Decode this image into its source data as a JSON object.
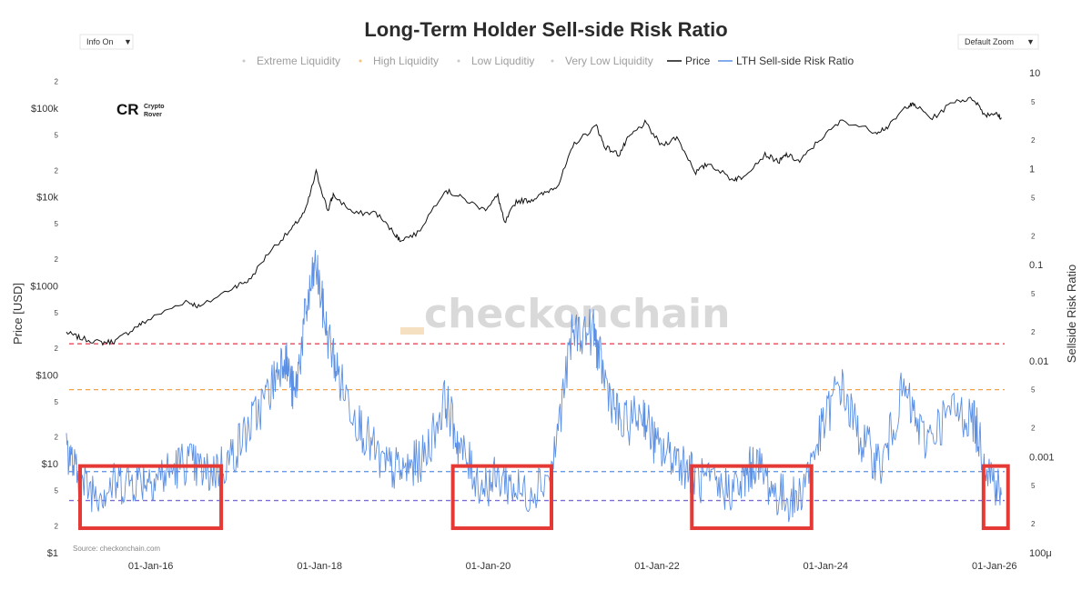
{
  "chart_data": {
    "type": "line",
    "title": "Long-Term Holder Sell-side Risk Ratio",
    "controls": {
      "info_label": "Info On",
      "zoom_label": "Default Zoom"
    },
    "legend": [
      {
        "label": "Extreme Liquidity",
        "color": "#c9c9c9",
        "marker": "dot"
      },
      {
        "label": "High Liquidity",
        "color": "#f5c27a",
        "marker": "dot"
      },
      {
        "label": "Low Liquditiy",
        "color": "#c9c9c9",
        "marker": "dot"
      },
      {
        "label": "Very Low Liquidity",
        "color": "#c9c9c9",
        "marker": "dot"
      },
      {
        "label": "Price",
        "color": "#111111",
        "marker": "line"
      },
      {
        "label": "LTH Sell-side Risk Ratio",
        "color": "#5b8fe3",
        "marker": "line"
      }
    ],
    "y_left": {
      "label": "Price [USD]",
      "scale": "log",
      "range": [
        1,
        250000
      ],
      "major_ticks": [
        {
          "value": 1,
          "label": "$1"
        },
        {
          "value": 10,
          "label": "$10"
        },
        {
          "value": 100,
          "label": "$100"
        },
        {
          "value": 1000,
          "label": "$1000"
        },
        {
          "value": 10000,
          "label": "$10k"
        },
        {
          "value": 100000,
          "label": "$100k"
        }
      ],
      "minor_ticks": [
        {
          "value": 2,
          "label": "2"
        },
        {
          "value": 5,
          "label": "5"
        },
        {
          "value": 20,
          "label": "2"
        },
        {
          "value": 50,
          "label": "5"
        },
        {
          "value": 200,
          "label": "2"
        },
        {
          "value": 500,
          "label": "5"
        },
        {
          "value": 2000,
          "label": "2"
        },
        {
          "value": 5000,
          "label": "5"
        },
        {
          "value": 20000,
          "label": "2"
        },
        {
          "value": 50000,
          "label": "5"
        },
        {
          "value": 200000,
          "label": "2"
        }
      ]
    },
    "y_right": {
      "label": "Sellside Risk Ratio",
      "scale": "log",
      "range": [
        0.0001,
        10
      ],
      "major_ticks": [
        {
          "value": 0.0001,
          "label": "100μ"
        },
        {
          "value": 0.001,
          "label": "0.001"
        },
        {
          "value": 0.01,
          "label": "0.01"
        },
        {
          "value": 0.1,
          "label": "0.1"
        },
        {
          "value": 1,
          "label": "1"
        },
        {
          "value": 10,
          "label": "10"
        }
      ],
      "minor_ticks": [
        {
          "value": 0.0002,
          "label": "2"
        },
        {
          "value": 0.0005,
          "label": "5"
        },
        {
          "value": 0.002,
          "label": "2"
        },
        {
          "value": 0.005,
          "label": "5"
        },
        {
          "value": 0.02,
          "label": "2"
        },
        {
          "value": 0.05,
          "label": "5"
        },
        {
          "value": 0.2,
          "label": "2"
        },
        {
          "value": 0.5,
          "label": "5"
        },
        {
          "value": 2,
          "label": "2"
        },
        {
          "value": 5,
          "label": "5"
        }
      ]
    },
    "x_axis": {
      "type": "date",
      "range": [
        "2014-12-20",
        "2026-03-10"
      ],
      "ticks": [
        {
          "value": "2016-01-01",
          "label": "01-Jan-16"
        },
        {
          "value": "2018-01-01",
          "label": "01-Jan-18"
        },
        {
          "value": "2020-01-01",
          "label": "01-Jan-20"
        },
        {
          "value": "2022-01-01",
          "label": "01-Jan-22"
        },
        {
          "value": "2024-01-01",
          "label": "01-Jan-24"
        },
        {
          "value": "2026-01-01",
          "label": "01-Jan-26"
        }
      ]
    },
    "threshold_lines": [
      {
        "value": 0.015,
        "color": "#e8475b"
      },
      {
        "value": 0.005,
        "color": "#f3a04a"
      },
      {
        "value": 0.0007,
        "color": "#5b8fe3"
      },
      {
        "value": 0.00035,
        "color": "#7b6fd6"
      }
    ],
    "highlight_boxes": [
      {
        "x_start": "2015-03-01",
        "x_end": "2016-11-01",
        "y_low": 0.00018,
        "y_high": 0.0008,
        "color": "#e53935"
      },
      {
        "x_start": "2019-08-01",
        "x_end": "2020-10-01",
        "y_low": 0.00018,
        "y_high": 0.0008,
        "color": "#e53935"
      },
      {
        "x_start": "2022-06-01",
        "x_end": "2023-11-01",
        "y_low": 0.00018,
        "y_high": 0.0008,
        "color": "#e53935"
      },
      {
        "x_start": "2025-11-15",
        "x_end": "2026-03-01",
        "y_low": 0.00018,
        "y_high": 0.0008,
        "color": "#e53935"
      }
    ],
    "series": [
      {
        "name": "Price",
        "axis": "left",
        "color": "#111111",
        "points": [
          [
            "2015-01-01",
            300
          ],
          [
            "2015-03-01",
            260
          ],
          [
            "2015-06-01",
            230
          ],
          [
            "2015-08-01",
            240
          ],
          [
            "2015-11-01",
            350
          ],
          [
            "2016-01-01",
            430
          ],
          [
            "2016-06-01",
            680
          ],
          [
            "2016-08-01",
            580
          ],
          [
            "2017-01-01",
            1000
          ],
          [
            "2017-03-01",
            1150
          ],
          [
            "2017-06-01",
            2500
          ],
          [
            "2017-09-01",
            4300
          ],
          [
            "2017-11-01",
            7000
          ],
          [
            "2017-12-17",
            19000
          ],
          [
            "2018-02-06",
            7000
          ],
          [
            "2018-03-01",
            10500
          ],
          [
            "2018-06-01",
            6500
          ],
          [
            "2018-09-01",
            6700
          ],
          [
            "2018-11-25",
            3800
          ],
          [
            "2018-12-15",
            3300
          ],
          [
            "2019-03-01",
            3900
          ],
          [
            "2019-06-26",
            12000
          ],
          [
            "2019-09-01",
            10000
          ],
          [
            "2019-12-15",
            7200
          ],
          [
            "2020-02-12",
            10300
          ],
          [
            "2020-03-12",
            5000
          ],
          [
            "2020-05-01",
            9000
          ],
          [
            "2020-07-01",
            9200
          ],
          [
            "2020-09-01",
            11000
          ],
          [
            "2020-11-01",
            14000
          ],
          [
            "2021-01-08",
            40000
          ],
          [
            "2021-04-14",
            63000
          ],
          [
            "2021-05-19",
            37000
          ],
          [
            "2021-07-20",
            30000
          ],
          [
            "2021-09-01",
            47000
          ],
          [
            "2021-11-10",
            68000
          ],
          [
            "2022-01-20",
            38000
          ],
          [
            "2022-03-28",
            47000
          ],
          [
            "2022-06-18",
            19000
          ],
          [
            "2022-08-14",
            24000
          ],
          [
            "2022-11-21",
            15800
          ],
          [
            "2023-01-01",
            16600
          ],
          [
            "2023-04-14",
            30000
          ],
          [
            "2023-06-15",
            25000
          ],
          [
            "2023-07-15",
            30000
          ],
          [
            "2023-09-11",
            25000
          ],
          [
            "2023-12-05",
            44000
          ],
          [
            "2024-03-14",
            73000
          ],
          [
            "2024-08-05",
            54000
          ],
          [
            "2024-10-01",
            62000
          ],
          [
            "2024-12-17",
            106000
          ],
          [
            "2025-01-20",
            109000
          ],
          [
            "2025-04-07",
            76000
          ],
          [
            "2025-07-14",
            122000
          ],
          [
            "2025-10-06",
            126000
          ],
          [
            "2025-11-21",
            84000
          ],
          [
            "2026-01-01",
            88000
          ],
          [
            "2026-01-31",
            78000
          ]
        ]
      },
      {
        "name": "LTH Sell-side Risk Ratio",
        "axis": "right",
        "color": "#5b8fe3",
        "points": [
          [
            "2015-01-01",
            0.0013
          ],
          [
            "2015-03-01",
            0.0005
          ],
          [
            "2015-06-01",
            0.00045
          ],
          [
            "2015-09-01",
            0.00055
          ],
          [
            "2015-12-01",
            0.0006
          ],
          [
            "2016-03-01",
            0.00065
          ],
          [
            "2016-06-01",
            0.0009
          ],
          [
            "2016-09-01",
            0.00065
          ],
          [
            "2016-12-01",
            0.0009
          ],
          [
            "2017-03-01",
            0.002
          ],
          [
            "2017-06-01",
            0.005
          ],
          [
            "2017-08-01",
            0.012
          ],
          [
            "2017-09-15",
            0.004
          ],
          [
            "2017-11-01",
            0.03
          ],
          [
            "2017-12-15",
            0.1
          ],
          [
            "2018-02-01",
            0.02
          ],
          [
            "2018-04-01",
            0.006
          ],
          [
            "2018-07-01",
            0.002
          ],
          [
            "2018-10-01",
            0.0008
          ],
          [
            "2019-01-01",
            0.0007
          ],
          [
            "2019-04-01",
            0.001
          ],
          [
            "2019-06-30",
            0.004
          ],
          [
            "2019-09-01",
            0.0012
          ],
          [
            "2019-12-01",
            0.0005
          ],
          [
            "2020-03-01",
            0.0006
          ],
          [
            "2020-06-01",
            0.0004
          ],
          [
            "2020-10-01",
            0.0007
          ],
          [
            "2021-01-01",
            0.02
          ],
          [
            "2021-04-01",
            0.02
          ],
          [
            "2021-05-15",
            0.007
          ],
          [
            "2021-08-01",
            0.002
          ],
          [
            "2021-11-01",
            0.003
          ],
          [
            "2022-01-01",
            0.0012
          ],
          [
            "2022-04-01",
            0.001
          ],
          [
            "2022-06-15",
            0.0006
          ],
          [
            "2022-10-01",
            0.00045
          ],
          [
            "2023-01-01",
            0.0005
          ],
          [
            "2023-03-01",
            0.0009
          ],
          [
            "2023-06-01",
            0.0004
          ],
          [
            "2023-09-01",
            0.00035
          ],
          [
            "2023-12-01",
            0.0015
          ],
          [
            "2024-03-01",
            0.006
          ],
          [
            "2024-06-01",
            0.0015
          ],
          [
            "2024-09-01",
            0.0008
          ],
          [
            "2024-12-01",
            0.005
          ],
          [
            "2025-03-01",
            0.0015
          ],
          [
            "2025-07-01",
            0.003
          ],
          [
            "2025-10-01",
            0.0025
          ],
          [
            "2025-12-01",
            0.0008
          ],
          [
            "2026-01-31",
            0.0004
          ]
        ]
      }
    ],
    "watermark": "checkonchain",
    "source": "Source: checkonchain.com",
    "logo": {
      "line1": "Crypto",
      "line2": "Rover"
    }
  },
  "style": {
    "background": "#ffffff",
    "price_color": "#111111",
    "ratio_color": "#5b8fe3",
    "box_color": "#e53935",
    "watermark_accent": "#f6e0c2"
  }
}
